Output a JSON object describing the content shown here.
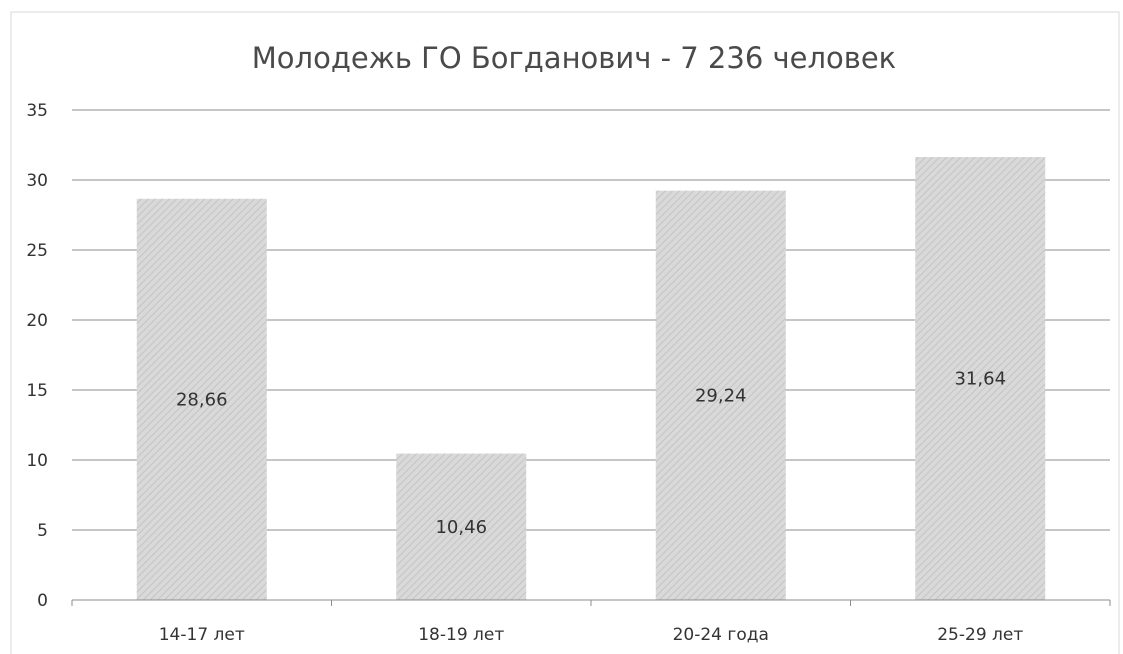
{
  "chart_data": {
    "type": "bar",
    "title": "Молодежь ГО Богданович - 7 236 человек",
    "categories": [
      "14-17 лет",
      "18-19 лет",
      "20-24 года",
      "25-29 лет"
    ],
    "values": [
      28.66,
      10.46,
      29.24,
      31.64
    ],
    "data_labels": [
      "28,66",
      "10,46",
      "29,24",
      "31,64"
    ],
    "y_ticks": [
      "0",
      "5",
      "10",
      "15",
      "20",
      "25",
      "30",
      "35"
    ],
    "ylim": [
      0,
      35
    ],
    "y_tick_step": 5,
    "grid": true,
    "legend": "none",
    "bar_fill": "#d9d9d9",
    "bar_stripe": "#c4c4c4",
    "gridline_color": "#8c8c8c",
    "axis_color": "#8c8c8c",
    "border_color": "#d9d9d9",
    "text_color": "#333333",
    "title_color": "#4a4a4a"
  }
}
